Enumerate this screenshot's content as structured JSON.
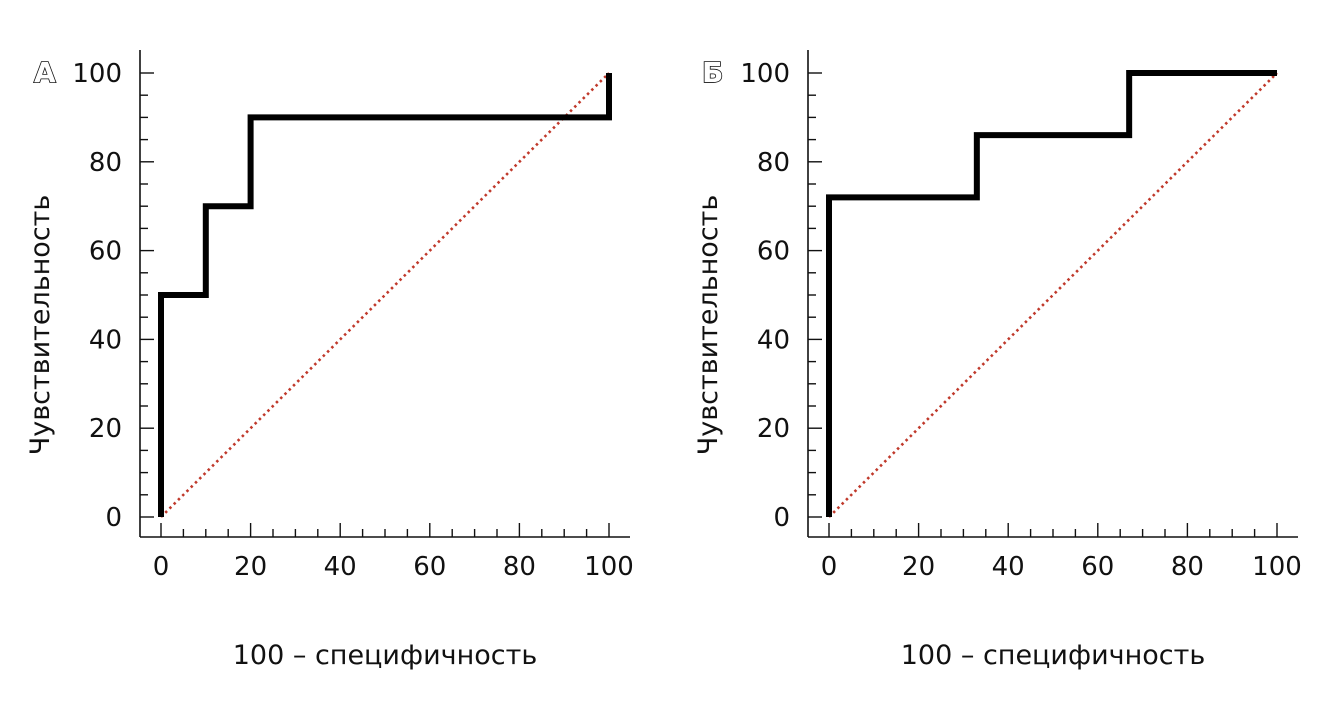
{
  "colors": {
    "roc": "#000000",
    "reference": "#c0392b",
    "axis": "#111111"
  },
  "chart_data": [
    {
      "type": "line",
      "panel_label": "А",
      "xlabel": "100 – специфичность",
      "ylabel": "Чувствительность",
      "xlim": [
        0,
        100
      ],
      "ylim": [
        0,
        100
      ],
      "x_ticks": [
        "0",
        "20",
        "40",
        "60",
        "80",
        "100"
      ],
      "y_ticks": [
        "0",
        "20",
        "40",
        "60",
        "80",
        "100"
      ],
      "grid": false,
      "series": [
        {
          "style": "solid-step",
          "x": [
            0,
            0,
            10,
            10,
            20,
            20,
            100,
            100
          ],
          "y": [
            0,
            50,
            50,
            70,
            70,
            90,
            90,
            100
          ]
        },
        {
          "style": "dotted-reference",
          "x": [
            0,
            100
          ],
          "y": [
            0,
            100
          ]
        }
      ]
    },
    {
      "type": "line",
      "panel_label": "Б",
      "xlabel": "100 – специфичность",
      "ylabel": "Чувствительность",
      "xlim": [
        0,
        100
      ],
      "ylim": [
        0,
        100
      ],
      "x_ticks": [
        "0",
        "20",
        "40",
        "60",
        "80",
        "100"
      ],
      "y_ticks": [
        "0",
        "20",
        "40",
        "60",
        "80",
        "100"
      ],
      "grid": false,
      "series": [
        {
          "style": "solid-step",
          "x": [
            0,
            0,
            33,
            33,
            67,
            67,
            100
          ],
          "y": [
            0,
            72,
            72,
            86,
            86,
            100,
            100
          ]
        },
        {
          "style": "dotted-reference",
          "x": [
            0,
            100
          ],
          "y": [
            0,
            100
          ]
        }
      ]
    }
  ]
}
